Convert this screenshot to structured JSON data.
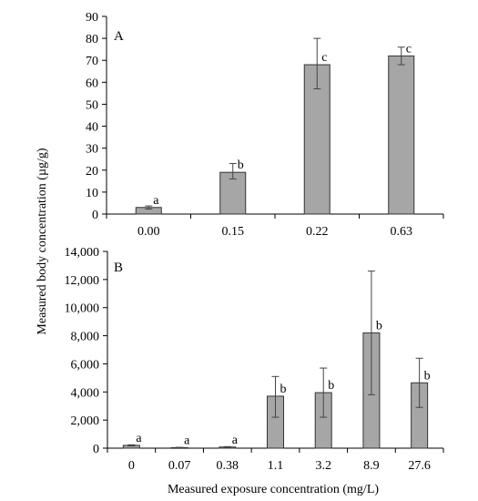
{
  "figure": {
    "shared_ylabel": "Measured body concentration (µg/g)",
    "shared_xlabel": "Measured exposure concentration (mg/L)"
  },
  "colors": {
    "bar": "#a6a6a6",
    "bar_edge": "#333333",
    "axis": "#000000",
    "error": "#444444"
  },
  "chart_data": [
    {
      "type": "bar",
      "panel_label": "A",
      "categories": [
        "0.00",
        "0.15",
        "0.22",
        "0.63"
      ],
      "values": [
        3,
        19,
        68,
        72
      ],
      "error_low": [
        2.3,
        16,
        57,
        68
      ],
      "error_high": [
        3.7,
        23,
        80,
        76
      ],
      "letters": [
        "a",
        "b",
        "c",
        "c"
      ],
      "ylim": [
        0,
        90
      ],
      "yticks": [
        0,
        10,
        20,
        30,
        40,
        50,
        60,
        70,
        80,
        90
      ],
      "ytick_labels": [
        "0",
        "10",
        "20",
        "30",
        "40",
        "50",
        "60",
        "70",
        "80",
        "90"
      ],
      "grid": false
    },
    {
      "type": "bar",
      "panel_label": "B",
      "categories": [
        "0",
        "0.07",
        "0.38",
        "1.1",
        "3.2",
        "8.9",
        "27.6"
      ],
      "values": [
        200,
        40,
        80,
        3700,
        3950,
        8200,
        4650
      ],
      "error_low": [
        160,
        20,
        50,
        2200,
        2200,
        3800,
        2900
      ],
      "error_high": [
        240,
        60,
        110,
        5100,
        5700,
        12600,
        6400
      ],
      "letters": [
        "a",
        "a",
        "a",
        "b",
        "b",
        "b",
        "b"
      ],
      "ylim": [
        0,
        14000
      ],
      "yticks": [
        0,
        2000,
        4000,
        6000,
        8000,
        10000,
        12000,
        14000
      ],
      "ytick_labels": [
        "0",
        "2,000",
        "4,000",
        "6,000",
        "8,000",
        "10,000",
        "12,000",
        "14,000"
      ],
      "grid": false
    }
  ]
}
